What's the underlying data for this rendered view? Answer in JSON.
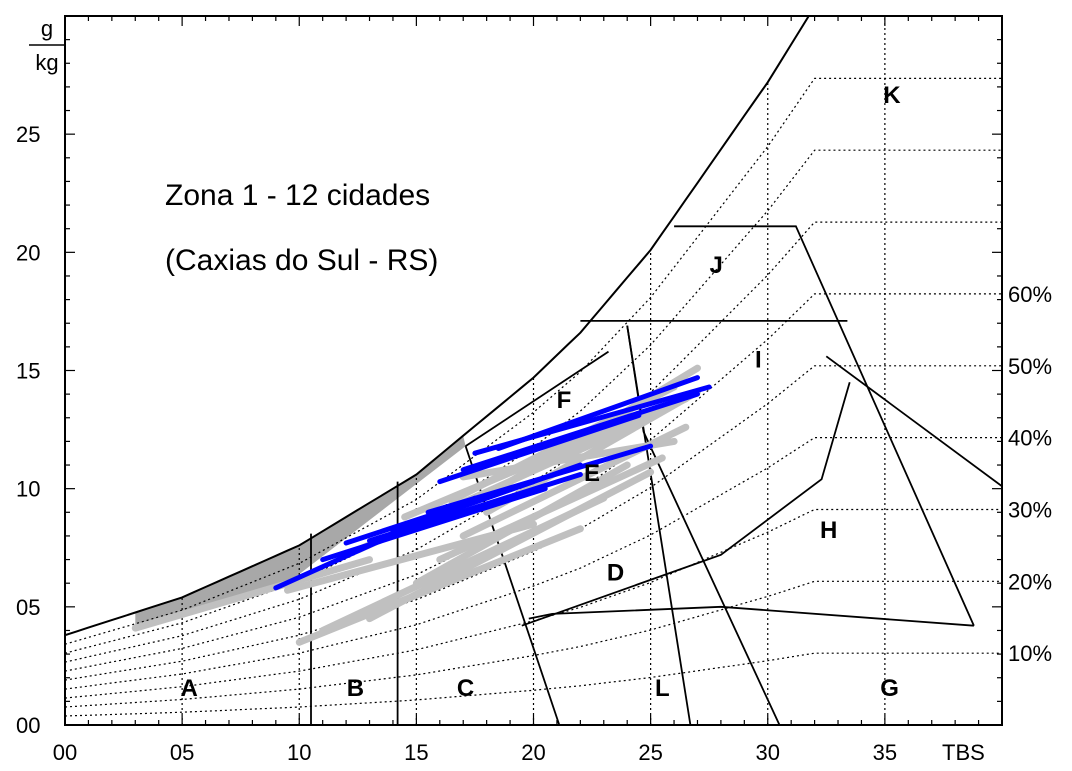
{
  "chart_data": {
    "type": "psychrometric",
    "title": "Zona 1 - 12 cidades",
    "subtitle": "(Caxias do Sul - RS)",
    "xlabel": "TBS",
    "ylabel_top": "g",
    "ylabel_bottom": "kg",
    "xlim": [
      0,
      40
    ],
    "ylim": [
      0,
      30
    ],
    "x_ticks": [
      {
        "value": 0,
        "label": "00"
      },
      {
        "value": 5,
        "label": "05"
      },
      {
        "value": 10,
        "label": "10"
      },
      {
        "value": 15,
        "label": "15"
      },
      {
        "value": 20,
        "label": "20"
      },
      {
        "value": 25,
        "label": "25"
      },
      {
        "value": 30,
        "label": "30"
      },
      {
        "value": 35,
        "label": "35"
      }
    ],
    "y_ticks": [
      {
        "value": 0,
        "label": "00"
      },
      {
        "value": 5,
        "label": "05"
      },
      {
        "value": 10,
        "label": "10"
      },
      {
        "value": 15,
        "label": "15"
      },
      {
        "value": 20,
        "label": "20"
      },
      {
        "value": 25,
        "label": "25"
      }
    ],
    "rh_labels": [
      {
        "rh": 10,
        "label": "10%"
      },
      {
        "rh": 20,
        "label": "20%"
      },
      {
        "rh": 30,
        "label": "30%"
      },
      {
        "rh": 40,
        "label": "40%"
      },
      {
        "rh": 50,
        "label": "50%"
      },
      {
        "rh": 60,
        "label": "60%"
      }
    ],
    "rh_curves": [
      10,
      20,
      30,
      40,
      50,
      60,
      70,
      80,
      90
    ],
    "saturation_curve": [
      [
        0,
        3.8
      ],
      [
        5,
        5.4
      ],
      [
        10,
        7.6
      ],
      [
        15,
        10.6
      ],
      [
        20,
        14.7
      ],
      [
        22,
        16.6
      ],
      [
        25,
        20.1
      ],
      [
        30,
        27.2
      ],
      [
        32,
        30.4
      ]
    ],
    "zone_boundaries": [
      [
        [
          10.5,
          0
        ],
        [
          10.5,
          8.1
        ]
      ],
      [
        [
          14.2,
          0
        ],
        [
          14.2,
          10.3
        ]
      ],
      [
        [
          19.5,
          4.2
        ],
        [
          28,
          7.2
        ],
        [
          32.3,
          10.4
        ],
        [
          33.5,
          14.5
        ]
      ],
      [
        [
          19.8,
          4.5
        ],
        [
          20.8,
          4.7
        ],
        [
          28,
          5
        ],
        [
          38.8,
          4.2
        ]
      ],
      [
        [
          17.1,
          11.8
        ],
        [
          23.2,
          15.8
        ]
      ],
      [
        [
          17.1,
          11.8
        ],
        [
          21.1,
          0
        ]
      ],
      [
        [
          24,
          16.9
        ],
        [
          24.7,
          12.4
        ],
        [
          30.5,
          0
        ]
      ],
      [
        [
          24,
          16.9
        ],
        [
          26.7,
          0
        ]
      ],
      [
        [
          22,
          17.1
        ],
        [
          33.4,
          17.1
        ]
      ],
      [
        [
          26,
          21.1
        ],
        [
          31.2,
          21.1
        ],
        [
          38.8,
          4.2
        ]
      ],
      [
        [
          32.5,
          15.6
        ],
        [
          40,
          10.1
        ]
      ]
    ],
    "zones": [
      {
        "label": "A",
        "x": 5.3,
        "y": 1.6
      },
      {
        "label": "B",
        "x": 12.4,
        "y": 1.6
      },
      {
        "label": "C",
        "x": 17.1,
        "y": 1.6
      },
      {
        "label": "D",
        "x": 23.5,
        "y": 6.5
      },
      {
        "label": "E",
        "x": 22.5,
        "y": 10.7
      },
      {
        "label": "F",
        "x": 21.3,
        "y": 13.8
      },
      {
        "label": "G",
        "x": 35.2,
        "y": 1.6
      },
      {
        "label": "H",
        "x": 32.6,
        "y": 8.3
      },
      {
        "label": "I",
        "x": 29.6,
        "y": 15.5
      },
      {
        "label": "J",
        "x": 27.8,
        "y": 19.5
      },
      {
        "label": "K",
        "x": 35.3,
        "y": 26.7
      },
      {
        "label": "L",
        "x": 25.5,
        "y": 1.6
      }
    ],
    "series": [
      {
        "color": "#c0c0c0",
        "lines": [
          [
            [
              3.0,
              4.1
            ],
            [
              13.0,
              7.0
            ]
          ],
          [
            [
              10.0,
              3.5
            ],
            [
              22.0,
              8.3
            ]
          ],
          [
            [
              11.0,
              4.0
            ],
            [
              23.0,
              9.6
            ]
          ],
          [
            [
              13.0,
              4.5
            ],
            [
              25.0,
              10.7
            ]
          ],
          [
            [
              15.0,
              6.0
            ],
            [
              24.0,
              11.0
            ]
          ],
          [
            [
              16.0,
              7.0
            ],
            [
              25.5,
              11.3
            ]
          ],
          [
            [
              17.0,
              8.0
            ],
            [
              26.5,
              12.6
            ]
          ],
          [
            [
              18.0,
              9.0
            ],
            [
              27.0,
              14.1
            ]
          ],
          [
            [
              18.5,
              10.0
            ],
            [
              27.0,
              15.1
            ]
          ],
          [
            [
              14.5,
              8.8
            ],
            [
              26.5,
              13.8
            ]
          ],
          [
            [
              16.5,
              9.5
            ],
            [
              26.0,
              14.3
            ]
          ],
          [
            [
              12.5,
              7.4
            ],
            [
              25.0,
              13.0
            ]
          ],
          [
            [
              9.5,
              5.7
            ],
            [
              20.0,
              8.5
            ]
          ],
          [
            [
              17.0,
              10.5
            ],
            [
              26.0,
              12.0
            ]
          ]
        ]
      },
      {
        "color": "#0000ff",
        "lines": [
          [
            [
              9.0,
              5.8
            ],
            [
              17.5,
              9.6
            ]
          ],
          [
            [
              12.0,
              7.7
            ],
            [
              20.0,
              10.3
            ]
          ],
          [
            [
              14.0,
              8.2
            ],
            [
              22.0,
              11.0
            ]
          ],
          [
            [
              16.0,
              10.3
            ],
            [
              24.5,
              13.1
            ]
          ],
          [
            [
              17.0,
              10.8
            ],
            [
              27.0,
              14.0
            ]
          ],
          [
            [
              17.5,
              11.5
            ],
            [
              27.5,
              14.3
            ]
          ],
          [
            [
              15.5,
              9.0
            ],
            [
              25.0,
              11.8
            ]
          ],
          [
            [
              11.0,
              7.0
            ],
            [
              20.5,
              10.0
            ]
          ],
          [
            [
              18.5,
              11.7
            ],
            [
              27.0,
              14.7
            ]
          ],
          [
            [
              13.0,
              7.8
            ],
            [
              22.0,
              10.6
            ]
          ]
        ]
      }
    ]
  }
}
